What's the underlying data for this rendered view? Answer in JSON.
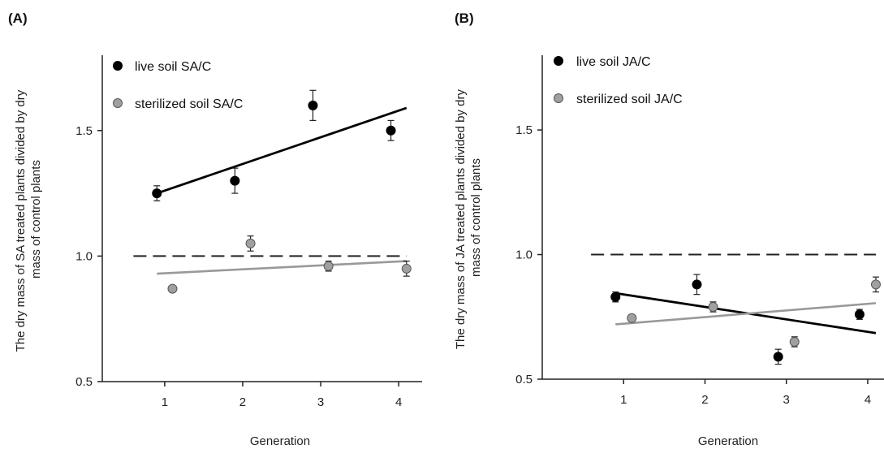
{
  "chart_data": [
    {
      "type": "scatter",
      "panel_label": "(A)",
      "xlabel": "Generation",
      "ylabel": "The dry mass of SA treated plants divided by dry mass of control plants",
      "x_ticks": [
        1,
        2,
        3,
        4
      ],
      "y_ticks": [
        "0.5",
        "1.0",
        "1.5"
      ],
      "xlim": [
        0.2,
        4.3
      ],
      "ylim": [
        0.5,
        1.8
      ],
      "reference_line": 1.0,
      "legend_position": "top-left",
      "series": [
        {
          "name": "live soil SA/C",
          "color": "#000000",
          "line_color": "#000000",
          "points": [
            {
              "x": 0.9,
              "y": 1.25,
              "err": 0.03
            },
            {
              "x": 1.9,
              "y": 1.3,
              "err": 0.05
            },
            {
              "x": 2.9,
              "y": 1.6,
              "err": 0.06
            },
            {
              "x": 3.9,
              "y": 1.5,
              "err": 0.04
            }
          ],
          "trend": [
            [
              0.9,
              1.25
            ],
            [
              4.1,
              1.59
            ]
          ]
        },
        {
          "name": "sterilized soil SA/C",
          "color": "#a0a0a0",
          "line_color": "#999999",
          "points": [
            {
              "x": 1.1,
              "y": 0.87,
              "err": 0
            },
            {
              "x": 2.1,
              "y": 1.05,
              "err": 0.03
            },
            {
              "x": 3.1,
              "y": 0.96,
              "err": 0.02
            },
            {
              "x": 4.1,
              "y": 0.95,
              "err": 0.03
            }
          ],
          "trend": [
            [
              0.9,
              0.93
            ],
            [
              4.1,
              0.98
            ]
          ]
        }
      ]
    },
    {
      "type": "scatter",
      "panel_label": "(B)",
      "xlabel": "Generation",
      "ylabel": "The dry mass of JA treated plants divided by dry mass of control plants",
      "x_ticks": [
        1,
        2,
        3,
        4
      ],
      "y_ticks": [
        "0.5",
        "1.0",
        "1.5"
      ],
      "xlim": [
        0.0,
        4.2
      ],
      "ylim": [
        0.5,
        1.8
      ],
      "reference_line": 1.0,
      "legend_position": "top-left",
      "series": [
        {
          "name": "live soil JA/C",
          "color": "#000000",
          "line_color": "#000000",
          "points": [
            {
              "x": 0.9,
              "y": 0.83,
              "err": 0.02
            },
            {
              "x": 1.9,
              "y": 0.88,
              "err": 0.04
            },
            {
              "x": 2.9,
              "y": 0.59,
              "err": 0.03
            },
            {
              "x": 3.9,
              "y": 0.76,
              "err": 0.02
            }
          ],
          "trend": [
            [
              0.9,
              0.845
            ],
            [
              4.1,
              0.685
            ]
          ]
        },
        {
          "name": "sterilized soil JA/C",
          "color": "#a0a0a0",
          "line_color": "#999999",
          "points": [
            {
              "x": 1.1,
              "y": 0.745,
              "err": 0
            },
            {
              "x": 2.1,
              "y": 0.79,
              "err": 0.02
            },
            {
              "x": 3.1,
              "y": 0.65,
              "err": 0.02
            },
            {
              "x": 4.1,
              "y": 0.88,
              "err": 0.03
            }
          ],
          "trend": [
            [
              0.9,
              0.72
            ],
            [
              4.1,
              0.805
            ]
          ]
        }
      ]
    }
  ]
}
